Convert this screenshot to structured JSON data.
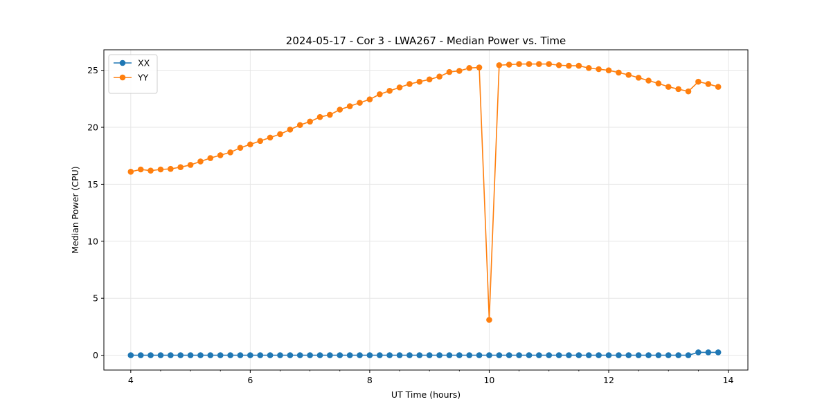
{
  "chart_data": {
    "type": "line",
    "title": "2024-05-17 - Cor 3 - LWA267 - Median Power vs. Time",
    "xlabel": "UT Time (hours)",
    "ylabel": "Median Power (CPU)",
    "xlim": [
      3.55,
      14.33
    ],
    "ylim": [
      -1.3,
      26.8
    ],
    "xticks": [
      4,
      6,
      8,
      10,
      12,
      14
    ],
    "yticks": [
      0,
      5,
      10,
      15,
      20,
      25
    ],
    "xtick_labels": [
      "4",
      "6",
      "8",
      "10",
      "12",
      "14"
    ],
    "ytick_labels": [
      "0",
      "5",
      "10",
      "15",
      "20",
      "25"
    ],
    "grid": true,
    "legend": "top-left",
    "series": [
      {
        "name": "XX",
        "color": "#1f77b4",
        "x": [
          4.0,
          4.167,
          4.333,
          4.5,
          4.667,
          4.833,
          5.0,
          5.167,
          5.333,
          5.5,
          5.667,
          5.833,
          6.0,
          6.167,
          6.333,
          6.5,
          6.667,
          6.833,
          7.0,
          7.167,
          7.333,
          7.5,
          7.667,
          7.833,
          8.0,
          8.167,
          8.333,
          8.5,
          8.667,
          8.833,
          9.0,
          9.167,
          9.333,
          9.5,
          9.667,
          9.833,
          10.0,
          10.167,
          10.333,
          10.5,
          10.667,
          10.833,
          11.0,
          11.167,
          11.333,
          11.5,
          11.667,
          11.833,
          12.0,
          12.167,
          12.333,
          12.5,
          12.667,
          12.833,
          13.0,
          13.167,
          13.333,
          13.5,
          13.667,
          13.833
        ],
        "y": [
          0.0,
          0.0,
          0.0,
          0.0,
          0.0,
          0.0,
          0.0,
          0.0,
          0.0,
          0.0,
          0.0,
          0.0,
          0.0,
          0.0,
          0.0,
          0.0,
          0.0,
          0.0,
          0.0,
          0.0,
          0.0,
          0.0,
          0.0,
          0.0,
          0.0,
          0.0,
          0.0,
          0.0,
          0.0,
          0.0,
          0.0,
          0.0,
          0.0,
          0.0,
          0.0,
          0.0,
          0.0,
          0.0,
          0.0,
          0.0,
          0.0,
          0.0,
          0.0,
          0.0,
          0.0,
          0.0,
          0.0,
          0.0,
          0.0,
          0.0,
          0.0,
          0.0,
          0.0,
          0.0,
          0.0,
          0.0,
          0.0,
          0.25,
          0.25,
          0.25
        ]
      },
      {
        "name": "YY",
        "color": "#ff7f0e",
        "x": [
          4.0,
          4.167,
          4.333,
          4.5,
          4.667,
          4.833,
          5.0,
          5.167,
          5.333,
          5.5,
          5.667,
          5.833,
          6.0,
          6.167,
          6.333,
          6.5,
          6.667,
          6.833,
          7.0,
          7.167,
          7.333,
          7.5,
          7.667,
          7.833,
          8.0,
          8.167,
          8.333,
          8.5,
          8.667,
          8.833,
          9.0,
          9.167,
          9.333,
          9.5,
          9.667,
          9.833,
          10.0,
          10.167,
          10.333,
          10.5,
          10.667,
          10.833,
          11.0,
          11.167,
          11.333,
          11.5,
          11.667,
          11.833,
          12.0,
          12.167,
          12.333,
          12.5,
          12.667,
          12.833,
          13.0,
          13.167,
          13.333,
          13.5,
          13.667,
          13.833
        ],
        "y": [
          16.1,
          16.3,
          16.2,
          16.3,
          16.35,
          16.5,
          16.7,
          17.0,
          17.3,
          17.55,
          17.8,
          18.2,
          18.5,
          18.8,
          19.1,
          19.4,
          19.8,
          20.2,
          20.5,
          20.9,
          21.1,
          21.55,
          21.85,
          22.15,
          22.45,
          22.9,
          23.2,
          23.5,
          23.8,
          24.0,
          24.2,
          24.45,
          24.85,
          24.95,
          25.2,
          25.25,
          3.1,
          25.45,
          25.5,
          25.55,
          25.55,
          25.55,
          25.55,
          25.45,
          25.4,
          25.4,
          25.2,
          25.1,
          25.0,
          24.8,
          24.6,
          24.35,
          24.1,
          23.85,
          23.55,
          23.35,
          23.15,
          24.0,
          23.8,
          23.55
        ]
      }
    ]
  }
}
